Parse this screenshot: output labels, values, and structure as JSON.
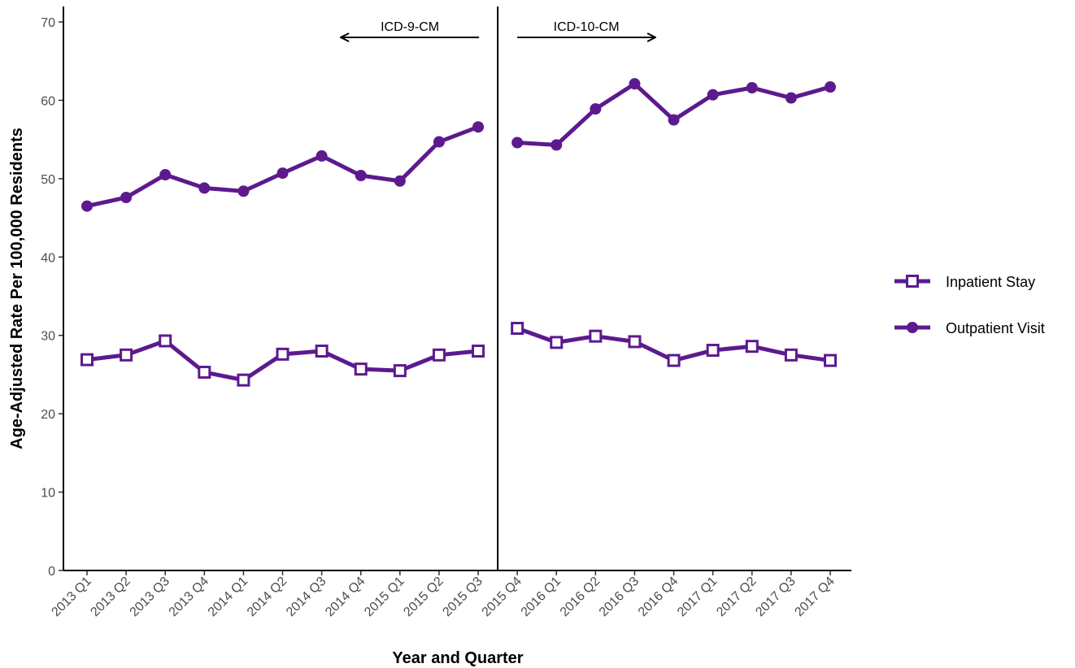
{
  "chart_data": {
    "type": "line",
    "title": "",
    "xlabel": "Year and Quarter",
    "ylabel": "Age-Adjusted Rate Per 100,000 Residents",
    "ylim": [
      0,
      70
    ],
    "yticks": [
      0,
      10,
      20,
      30,
      40,
      50,
      60,
      70
    ],
    "grid": false,
    "legend_position": "right",
    "categories": [
      "2013 Q1",
      "2013 Q2",
      "2013 Q3",
      "2013 Q4",
      "2014 Q1",
      "2014 Q2",
      "2014 Q3",
      "2014 Q4",
      "2015 Q1",
      "2015 Q2",
      "2015 Q3",
      "2015 Q4",
      "2016 Q1",
      "2016 Q2",
      "2016 Q3",
      "2016 Q4",
      "2017 Q1",
      "2017 Q2",
      "2017 Q3",
      "2017 Q4"
    ],
    "break_after_index": 10,
    "series": [
      {
        "name": "Inpatient Stay",
        "marker": "open-square",
        "color": "#5c1a8e",
        "values": [
          26.9,
          27.5,
          29.3,
          25.3,
          24.3,
          27.6,
          28.0,
          25.7,
          25.5,
          27.5,
          28.0,
          30.9,
          29.1,
          29.9,
          29.2,
          26.8,
          28.1,
          28.6,
          27.5,
          26.8
        ]
      },
      {
        "name": "Outpatient Visit",
        "marker": "filled-circle",
        "color": "#5c1a8e",
        "values": [
          46.5,
          47.6,
          50.5,
          48.8,
          48.4,
          50.7,
          52.9,
          50.4,
          49.7,
          54.7,
          56.6,
          54.6,
          54.3,
          58.9,
          62.1,
          57.5,
          60.7,
          61.6,
          60.3,
          61.7
        ]
      }
    ],
    "annotations": [
      {
        "text": "ICD-9-CM",
        "direction": "left"
      },
      {
        "text": "ICD-10-CM",
        "direction": "right"
      }
    ]
  }
}
